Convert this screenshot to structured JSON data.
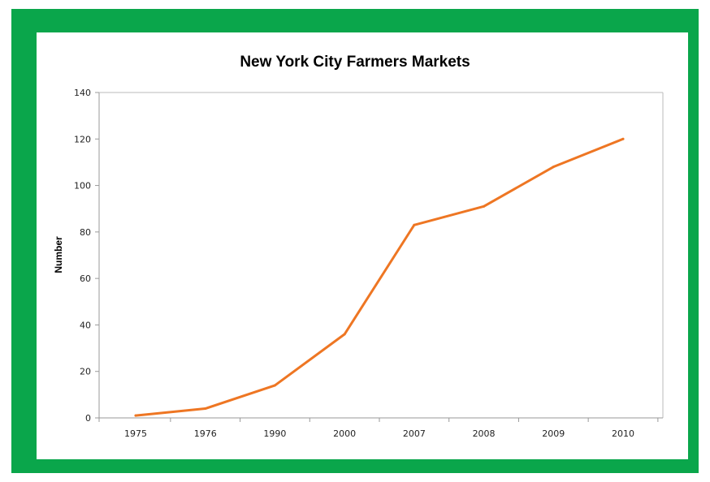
{
  "frame_color": "#0aa64b",
  "chart_data": {
    "type": "line",
    "title": "New York City Farmers Markets",
    "xlabel": "",
    "ylabel": "Number",
    "categories": [
      "1975",
      "1976",
      "1990",
      "2000",
      "2007",
      "2008",
      "2009",
      "2010"
    ],
    "series": [
      {
        "values": [
          1,
          4,
          14,
          36,
          83,
          91,
          108,
          120
        ],
        "color": "#ee7623"
      }
    ],
    "ylim": [
      0,
      140
    ],
    "yticks": [
      0,
      20,
      40,
      60,
      80,
      100,
      120,
      140
    ],
    "grid": false,
    "legend": "none"
  }
}
